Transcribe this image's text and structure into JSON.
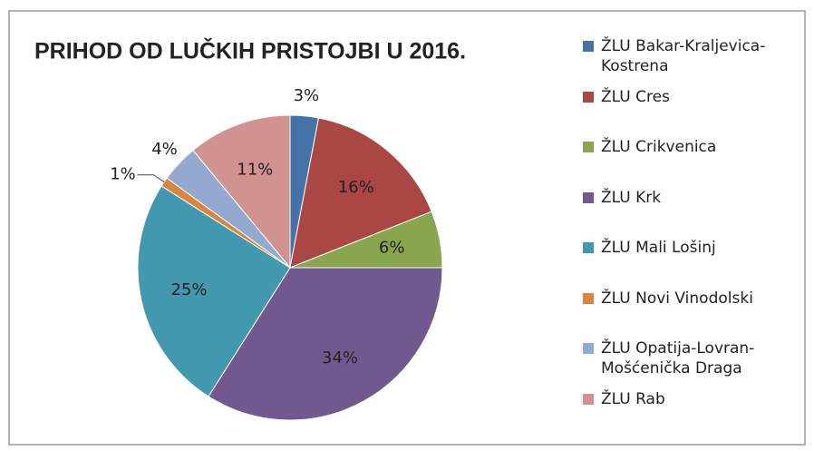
{
  "chart_data": {
    "type": "pie",
    "title": "PRIHOD OD LUČKIH PRISTOJBI U 2016.",
    "categories": [
      "ŽLU Bakar-Kraljevica-Kostrena",
      "ŽLU Cres",
      "ŽLU Crikvenica",
      "ŽLU Krk",
      "ŽLU Mali Lošinj",
      "ŽLU Novi Vinodolski",
      "ŽLU Opatija-Lovran-Mošćenička Draga",
      "ŽLU Rab"
    ],
    "values": [
      3,
      16,
      6,
      34,
      25,
      1,
      4,
      11
    ],
    "value_labels": [
      "3%",
      "16%",
      "6%",
      "34%",
      "25%",
      "1%",
      "4%",
      "11%"
    ],
    "colors": [
      "#4572a7",
      "#aa4643",
      "#89a54e",
      "#71588f",
      "#4198af",
      "#db843d",
      "#93a9cf",
      "#d19392"
    ],
    "legend": "right"
  }
}
